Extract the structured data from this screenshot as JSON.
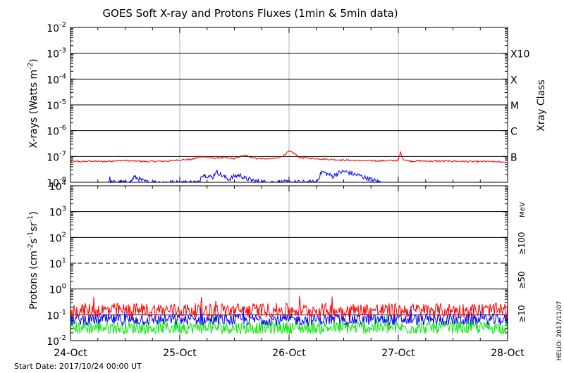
{
  "chart_data": [
    {
      "type": "line",
      "title": "GOES Soft X-ray and Protons Fluxes   (1min & 5min data)",
      "ylabel": "X-rays (Watts m-2)",
      "ylabel_parts": {
        "main": "X-rays (Watts m",
        "sup": "-2",
        "close": ")"
      },
      "y_right_label": "Xray Class",
      "y_scale": "log",
      "ylim": [
        1e-08,
        0.01
      ],
      "y_ticks": [
        {
          "base": "10",
          "exp": "-8",
          "value": 1e-08
        },
        {
          "base": "10",
          "exp": "-7",
          "value": 1e-07
        },
        {
          "base": "10",
          "exp": "-6",
          "value": 1e-06
        },
        {
          "base": "10",
          "exp": "-5",
          "value": 1e-05
        },
        {
          "base": "10",
          "exp": "-4",
          "value": 0.0001
        },
        {
          "base": "10",
          "exp": "-3",
          "value": 0.001
        },
        {
          "base": "10",
          "exp": "-2",
          "value": 0.01
        }
      ],
      "classes": [
        {
          "label": "B",
          "value": 1e-07
        },
        {
          "label": "C",
          "value": 1e-06
        },
        {
          "label": "M",
          "value": 1e-05
        },
        {
          "label": "X",
          "value": 0.0001
        },
        {
          "label": "X10",
          "value": 0.001
        }
      ],
      "grid": true,
      "series": [
        {
          "color": "#ff0000",
          "x": [
            0,
            0.1,
            0.2,
            0.3,
            0.4,
            0.5,
            0.6,
            0.7,
            0.8,
            0.9,
            1.0,
            1.1,
            1.15,
            1.2,
            1.3,
            1.4,
            1.5,
            1.55,
            1.6,
            1.7,
            1.8,
            1.9,
            1.95,
            2.0,
            2.05,
            2.1,
            2.2,
            2.3,
            2.4,
            2.5,
            2.6,
            2.7,
            2.8,
            2.9,
            3.0,
            3.02,
            3.04,
            3.1,
            3.2,
            3.3,
            3.4,
            3.5,
            3.6,
            3.7,
            3.8,
            3.9,
            4.0
          ],
          "values": [
            6.5e-08,
            6.3e-08,
            6.6e-08,
            6.4e-08,
            6.8e-08,
            7e-08,
            6.6e-08,
            6.4e-08,
            6.5e-08,
            6.7e-08,
            7.4e-08,
            7.6e-08,
            8.6e-08,
            1e-07,
            8.6e-08,
            9e-08,
            8.3e-08,
            1e-07,
            1.1e-07,
            8.4e-08,
            8.2e-08,
            8.6e-08,
            1.1e-07,
            1.6e-07,
            1.3e-07,
            9e-08,
            8.6e-08,
            8e-08,
            7.6e-08,
            7.2e-08,
            7e-08,
            6.8e-08,
            6.8e-08,
            6.9e-08,
            7e-08,
            1.5e-07,
            8e-08,
            6.6e-08,
            6.7e-08,
            6.6e-08,
            6.6e-08,
            6.6e-08,
            6.5e-08,
            6.3e-08,
            6.4e-08,
            6.2e-08,
            6e-08
          ]
        },
        {
          "color": "#0000ff",
          "x": [
            0.35,
            0.36,
            0.37,
            0.55,
            0.58,
            0.62,
            0.65,
            0.7,
            1.18,
            1.2,
            1.25,
            1.3,
            1.33,
            1.36,
            1.4,
            1.45,
            1.5,
            1.55,
            1.6,
            1.7,
            1.8,
            2.25,
            2.3,
            2.35,
            2.4,
            2.45,
            2.5,
            2.55,
            2.6,
            2.65,
            2.7,
            2.75,
            2.8,
            2.85
          ],
          "values": [
            1e-08,
            1.4e-08,
            1e-08,
            1e-08,
            1.6e-08,
            1.4e-08,
            1.2e-08,
            1e-08,
            1e-08,
            2e-08,
            1.8e-08,
            1.5e-08,
            2.6e-08,
            2.2e-08,
            1.7e-08,
            1.3e-08,
            1.7e-08,
            1.9e-08,
            1.4e-08,
            1.1e-08,
            1e-08,
            1e-08,
            2.6e-08,
            2.1e-08,
            1.7e-08,
            2.3e-08,
            2.6e-08,
            2.4e-08,
            2e-08,
            1.8e-08,
            1.5e-08,
            1.3e-08,
            1.1e-08,
            1e-08
          ]
        }
      ]
    },
    {
      "type": "line",
      "ylabel": "Protons (cm-2s-1sr-1)",
      "ylabel_parts": {
        "a": "Protons (cm",
        "b": "-2",
        "c": "s",
        "d": "-1",
        "e": "sr",
        "f": "-1",
        "g": ")"
      },
      "y_scale": "log",
      "ylim": [
        0.01,
        10000.0
      ],
      "y_ticks": [
        {
          "base": "10",
          "exp": "-2",
          "value": 0.01
        },
        {
          "base": "10",
          "exp": "-1",
          "value": 0.1
        },
        {
          "base": "10",
          "exp": "0",
          "value": 1
        },
        {
          "base": "10",
          "exp": "1",
          "value": 10
        },
        {
          "base": "10",
          "exp": "2",
          "value": 100
        },
        {
          "base": "10",
          "exp": "3",
          "value": 1000
        },
        {
          "base": "10",
          "exp": "4",
          "value": 10000
        }
      ],
      "threshold": 10,
      "unit_label": "MeV",
      "series": [
        {
          "name": "≥10",
          "color": "#ff0000",
          "level": 0.15
        },
        {
          "name": "≥50",
          "color": "#0000ff",
          "level": 0.065
        },
        {
          "name": "≥100",
          "color": "#00ee00",
          "level": 0.032
        }
      ]
    }
  ],
  "x_axis": {
    "categories": [
      "24-Oct",
      "25-Oct",
      "26-Oct",
      "27-Oct",
      "28-Oct"
    ],
    "range_days": [
      0,
      4
    ]
  },
  "footer": {
    "start_date": "Start Date: 2017/10/24 00:00 UT",
    "stamp": "HELIO: 2017/11/07"
  },
  "colors": {
    "grid": "#000000",
    "day_lines": "#b0b0b0",
    "frame": "#000000"
  }
}
